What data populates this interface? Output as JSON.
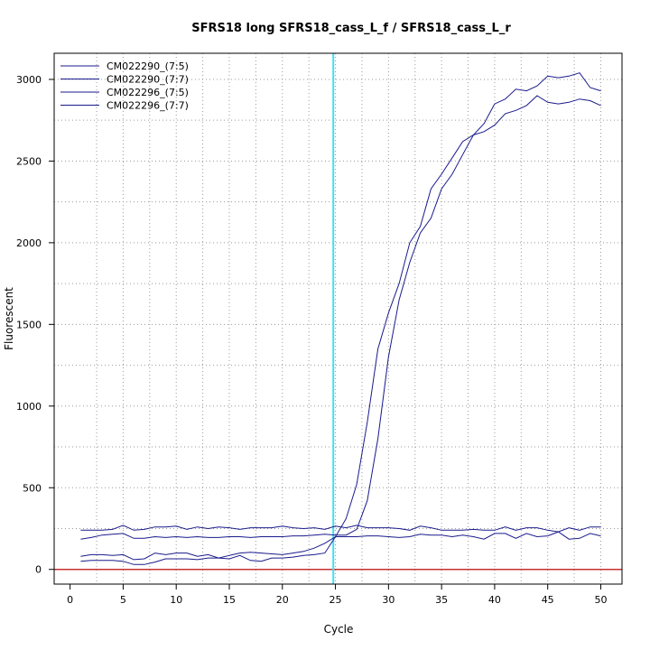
{
  "chart_data": {
    "type": "line",
    "title": "SFRS18 long SFRS18_cass_L_f / SFRS18_cass_L_r",
    "xlabel": "Cycle",
    "ylabel": "Fluorescent",
    "xlim": [
      -1.5,
      52
    ],
    "ylim": [
      -90,
      3160
    ],
    "xticks": [
      0,
      5,
      10,
      15,
      20,
      25,
      30,
      35,
      40,
      45,
      50
    ],
    "yticks": [
      0,
      500,
      1000,
      1500,
      2000,
      2500,
      3000
    ],
    "x_grid": [
      2.5,
      5,
      7.5,
      10,
      12.5,
      15,
      17.5,
      20,
      22.5,
      25,
      27.5,
      30,
      32.5,
      35,
      37.5,
      40,
      42.5,
      45,
      47.5,
      50
    ],
    "y_grid": [
      250,
      500,
      750,
      1000,
      1250,
      1500,
      1750,
      2000,
      2250,
      2500,
      2750,
      3000
    ],
    "grid": true,
    "legend_position": "top-left",
    "threshold_x": 24.8,
    "baseline_y": 0,
    "colors": {
      "series": "#1a1a8c",
      "threshold": "#40e0f0",
      "baseline": "#c83030",
      "grid": "#9a9a9a",
      "axis": "#000000"
    },
    "x": [
      1,
      2,
      3,
      4,
      5,
      6,
      7,
      8,
      9,
      10,
      11,
      12,
      13,
      14,
      15,
      16,
      17,
      18,
      19,
      20,
      21,
      22,
      23,
      24,
      25,
      26,
      27,
      28,
      29,
      30,
      31,
      32,
      33,
      34,
      35,
      36,
      37,
      38,
      39,
      40,
      41,
      42,
      43,
      44,
      45,
      46,
      47,
      48,
      49,
      50
    ],
    "series": [
      {
        "name": "CM022290_(7:5)",
        "values": [
          240,
          240,
          240,
          245,
          270,
          240,
          245,
          260,
          260,
          265,
          245,
          260,
          250,
          260,
          255,
          245,
          255,
          255,
          255,
          265,
          255,
          250,
          255,
          245,
          265,
          255,
          270,
          255,
          255,
          255,
          250,
          240,
          265,
          255,
          240,
          240,
          240,
          245,
          240,
          240,
          260,
          240,
          255,
          255,
          240,
          230,
          255,
          240,
          260,
          260
        ]
      },
      {
        "name": "CM022290_(7:7)",
        "values": [
          185,
          195,
          210,
          215,
          220,
          190,
          190,
          200,
          195,
          200,
          195,
          200,
          195,
          195,
          200,
          200,
          195,
          200,
          200,
          200,
          205,
          205,
          210,
          215,
          210,
          210,
          245,
          420,
          800,
          1300,
          1650,
          1880,
          2060,
          2150,
          2330,
          2420,
          2540,
          2660,
          2730,
          2850,
          2880,
          2940,
          2930,
          2960,
          3020,
          3010,
          3020,
          3040,
          2950,
          2930
        ]
      },
      {
        "name": "CM022296_(7:5)",
        "values": [
          80,
          90,
          90,
          85,
          90,
          60,
          65,
          100,
          90,
          100,
          100,
          80,
          90,
          70,
          85,
          100,
          105,
          100,
          95,
          90,
          100,
          110,
          130,
          160,
          200,
          310,
          520,
          900,
          1350,
          1570,
          1750,
          2000,
          2100,
          2330,
          2420,
          2520,
          2620,
          2660,
          2680,
          2720,
          2790,
          2810,
          2840,
          2900,
          2860,
          2850,
          2860,
          2880,
          2870,
          2840
        ]
      },
      {
        "name": "CM022296_(7:7)",
        "values": [
          50,
          55,
          55,
          55,
          50,
          30,
          30,
          45,
          65,
          65,
          65,
          60,
          70,
          70,
          65,
          85,
          55,
          50,
          70,
          70,
          75,
          85,
          90,
          100,
          200,
          200,
          200,
          205,
          205,
          200,
          195,
          200,
          215,
          210,
          210,
          200,
          210,
          200,
          185,
          220,
          220,
          190,
          220,
          200,
          205,
          230,
          185,
          190,
          220,
          205
        ]
      }
    ]
  }
}
